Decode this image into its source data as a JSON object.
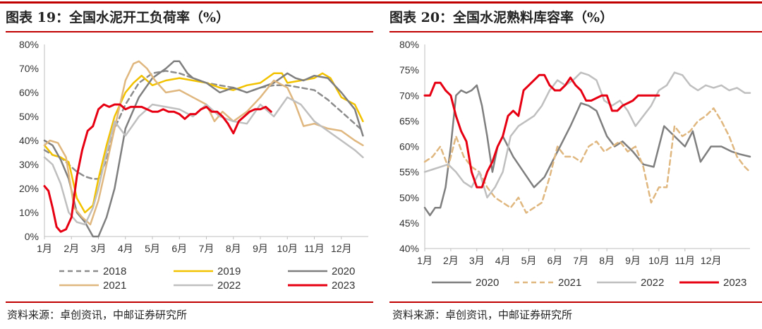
{
  "left": {
    "title": "图表 19：全国水泥开工负荷率（%）",
    "source": "资料来源：卓创资讯，中邮证券研究所"
  },
  "right": {
    "title": "图表 20：全国水泥熟料库容率（%）",
    "source": "资料来源：卓创资讯，中邮证券研究所"
  },
  "colors": {
    "accent": "#c00000",
    "s2018": "#8c8c8c",
    "s2019": "#f2c200",
    "s2020": "#7f7f7f",
    "s2021": "#dfb77f",
    "s2022": "#bfbfbf",
    "s2023": "#e60012"
  },
  "chart_data": [
    {
      "type": "line",
      "x_ticks": [
        "1月",
        "2月",
        "3月",
        "4月",
        "5月",
        "6月",
        "7月",
        "8月",
        "9月",
        "10月",
        "11月",
        "12月"
      ],
      "y_ticks": [
        "0%",
        "10%",
        "20%",
        "30%",
        "40%",
        "50%",
        "60%",
        "70%",
        "80%"
      ],
      "ylim": [
        0,
        80
      ],
      "xlim": [
        1,
        13
      ],
      "legend": [
        "2018",
        "2019",
        "2020",
        "2021",
        "2022",
        "2023"
      ],
      "series": [
        {
          "name": "2018",
          "style": "dashed",
          "color": "#8c8c8c",
          "x": [
            1,
            1.3,
            1.6,
            1.9,
            2.2,
            2.5,
            2.8,
            3,
            3.3,
            3.6,
            4,
            4.5,
            5,
            5.5,
            6,
            6.5,
            7,
            7.5,
            8,
            8.5,
            9,
            9.5,
            10,
            10.5,
            11,
            11.5,
            12,
            12.5,
            12.8
          ],
          "y": [
            36,
            34,
            33,
            30,
            27,
            25,
            24,
            24,
            32,
            45,
            55,
            64,
            68,
            69,
            68,
            66,
            64,
            63,
            62,
            60,
            62,
            63,
            63,
            62,
            61,
            57,
            52,
            47,
            44
          ]
        },
        {
          "name": "2019",
          "style": "solid",
          "color": "#f2c200",
          "x": [
            1,
            1.3,
            1.6,
            1.9,
            2.2,
            2.5,
            2.8,
            3,
            3.3,
            3.6,
            4,
            4.3,
            4.6,
            5,
            5.5,
            6,
            6.5,
            7,
            7.5,
            8,
            8.5,
            9,
            9.5,
            9.8,
            10,
            10.5,
            11,
            11.3,
            11.6,
            12,
            12.5,
            12.8
          ],
          "y": [
            38,
            34,
            33,
            31,
            16,
            10,
            13,
            24,
            38,
            50,
            60,
            64,
            67,
            63,
            65,
            66,
            65,
            64,
            62,
            61,
            63,
            64,
            68,
            68,
            64,
            65,
            66,
            68,
            66,
            58,
            55,
            48
          ]
        },
        {
          "name": "2020",
          "style": "solid",
          "color": "#7f7f7f",
          "x": [
            1,
            1.3,
            1.6,
            1.9,
            2.2,
            2.5,
            2.8,
            3,
            3.3,
            3.6,
            4,
            4.5,
            5,
            5.5,
            5.8,
            6,
            6.3,
            6.5,
            7,
            7.5,
            8,
            8.5,
            9,
            9.5,
            10,
            10.3,
            10.6,
            11,
            11.5,
            12,
            12.5,
            12.8
          ],
          "y": [
            40,
            38,
            32,
            24,
            10,
            6,
            0,
            0,
            8,
            20,
            45,
            58,
            66,
            70,
            73,
            73,
            68,
            66,
            64,
            60,
            62,
            60,
            62,
            64,
            68,
            66,
            65,
            67,
            66,
            60,
            53,
            42
          ]
        },
        {
          "name": "2021",
          "style": "solid",
          "color": "#dfb77f",
          "x": [
            1,
            1.2,
            1.5,
            1.8,
            2.1,
            2.4,
            2.7,
            3,
            3.3,
            3.6,
            4,
            4.3,
            4.5,
            4.8,
            5.1,
            5.5,
            6,
            6.5,
            7,
            7.3,
            7.6,
            8,
            8.5,
            9,
            9.5,
            10,
            10.3,
            10.6,
            11,
            11.5,
            12,
            12.5,
            12.8
          ],
          "y": [
            38,
            40,
            39,
            33,
            12,
            8,
            5,
            15,
            30,
            45,
            65,
            72,
            73,
            70,
            65,
            60,
            61,
            58,
            55,
            48,
            52,
            48,
            52,
            58,
            65,
            62,
            55,
            46,
            47,
            45,
            44,
            40,
            38
          ]
        },
        {
          "name": "2022",
          "style": "solid",
          "color": "#bfbfbf",
          "x": [
            1,
            1.3,
            1.6,
            1.9,
            2.2,
            2.5,
            2.8,
            3,
            3.3,
            3.6,
            4,
            4.5,
            5,
            5.5,
            6,
            6.5,
            7,
            7.5,
            8,
            8.5,
            9,
            9.5,
            10,
            10.5,
            11,
            11.5,
            12,
            12.5,
            12.8
          ],
          "y": [
            33,
            30,
            22,
            10,
            6,
            5,
            12,
            20,
            35,
            48,
            42,
            50,
            55,
            54,
            53,
            50,
            55,
            50,
            48,
            47,
            55,
            50,
            58,
            55,
            48,
            44,
            40,
            36,
            33
          ]
        },
        {
          "name": "2023",
          "style": "solid",
          "color": "#e60012",
          "x": [
            1,
            1.15,
            1.3,
            1.45,
            1.6,
            1.8,
            2,
            2.2,
            2.4,
            2.6,
            2.8,
            3,
            3.2,
            3.4,
            3.6,
            3.8,
            4,
            4.2,
            4.4,
            4.6,
            4.8,
            5,
            5.2,
            5.4,
            5.6,
            5.8,
            6,
            6.2,
            6.4,
            6.6,
            6.8,
            7,
            7.2,
            7.4,
            7.6,
            7.8,
            8,
            8.2,
            8.4,
            8.6,
            8.8,
            9,
            9.2,
            9.4
          ],
          "y": [
            21,
            19,
            12,
            4,
            2,
            3,
            8,
            25,
            36,
            44,
            46,
            53,
            55,
            54,
            55,
            55,
            53,
            54,
            54,
            54,
            53,
            52,
            52,
            53,
            52,
            52,
            51,
            49,
            51,
            51,
            53,
            54,
            52,
            52,
            50,
            47,
            43,
            48,
            50,
            52,
            53,
            53,
            54,
            52
          ]
        }
      ]
    },
    {
      "type": "line",
      "x_ticks": [
        "1月",
        "2月",
        "3月",
        "4月",
        "5月",
        "6月",
        "7月",
        "8月",
        "9月",
        "10月",
        "11月",
        "12月"
      ],
      "y_ticks": [
        "40%",
        "45%",
        "50%",
        "55%",
        "60%",
        "65%",
        "70%",
        "75%",
        "80%"
      ],
      "ylim": [
        40,
        80
      ],
      "xlim": [
        1,
        13.5
      ],
      "legend": [
        "2020",
        "2021",
        "2022",
        "2023"
      ],
      "series": [
        {
          "name": "2020",
          "style": "solid",
          "color": "#7f7f7f",
          "x": [
            1,
            1.2,
            1.4,
            1.6,
            1.8,
            2,
            2.2,
            2.4,
            2.6,
            2.8,
            3,
            3.2,
            3.4,
            3.6,
            3.8,
            4,
            4.4,
            4.8,
            5.2,
            5.6,
            5.9,
            6.2,
            6.6,
            7,
            7.3,
            7.6,
            8,
            8.3,
            8.6,
            9,
            9.4,
            9.8,
            10.2,
            10.6,
            11,
            11.3,
            11.6,
            12,
            12.4,
            12.8,
            13.1,
            13.5
          ],
          "y": [
            48,
            46.5,
            48,
            48,
            52,
            60,
            70,
            71,
            70.5,
            71,
            72,
            68,
            62,
            55,
            60,
            62,
            58,
            55,
            52,
            54,
            57,
            60,
            64,
            68.5,
            68,
            67,
            62,
            60,
            61,
            59,
            56.5,
            56,
            64,
            62,
            60,
            63,
            57,
            60,
            60,
            59,
            58.5,
            58
          ]
        },
        {
          "name": "2021",
          "style": "dashed",
          "color": "#dfb77f",
          "x": [
            1,
            1.3,
            1.6,
            1.9,
            2.2,
            2.5,
            2.8,
            3.1,
            3.4,
            3.7,
            4,
            4.3,
            4.6,
            4.9,
            5.2,
            5.5,
            5.8,
            6.1,
            6.4,
            6.7,
            7,
            7.3,
            7.6,
            7.9,
            8.2,
            8.5,
            8.8,
            9.1,
            9.4,
            9.7,
            10,
            10.3,
            10.6,
            10.9,
            11.2,
            11.5,
            11.8,
            12.1,
            12.4,
            12.7,
            13,
            13.3,
            13.5
          ],
          "y": [
            57,
            58,
            60,
            56,
            62,
            58,
            56,
            55,
            52,
            50,
            49,
            48,
            50,
            47,
            48,
            49,
            54,
            60,
            58,
            58,
            57,
            60,
            61,
            59,
            60,
            61,
            59,
            60,
            56,
            49,
            52,
            52,
            64,
            62,
            63,
            65,
            66,
            67.5,
            65,
            62,
            58,
            56,
            55
          ]
        },
        {
          "name": "2022",
          "style": "solid",
          "color": "#bfbfbf",
          "x": [
            1,
            1.3,
            1.6,
            1.9,
            2.2,
            2.5,
            2.8,
            3.1,
            3.4,
            3.7,
            4,
            4.3,
            4.6,
            4.9,
            5.2,
            5.5,
            5.8,
            6.1,
            6.4,
            6.7,
            7,
            7.3,
            7.6,
            7.9,
            8.2,
            8.5,
            8.8,
            9.1,
            9.4,
            9.7,
            10,
            10.3,
            10.6,
            10.9,
            11.2,
            11.5,
            11.8,
            12.1,
            12.4,
            12.7,
            13,
            13.3,
            13.5
          ],
          "y": [
            55,
            55.5,
            56,
            56.5,
            55,
            53,
            52,
            55,
            50,
            52,
            55,
            62,
            64,
            65,
            66,
            68,
            71,
            73,
            72,
            73,
            74.5,
            74,
            73,
            69,
            68,
            69,
            67,
            64,
            66,
            68,
            71,
            72,
            74.5,
            74,
            72,
            71,
            72,
            71.5,
            72,
            71,
            71.5,
            70.5,
            70.5
          ]
        },
        {
          "name": "2023",
          "style": "solid",
          "color": "#e60012",
          "x": [
            1,
            1.2,
            1.4,
            1.6,
            1.8,
            2,
            2.2,
            2.4,
            2.6,
            2.8,
            3,
            3.2,
            3.4,
            3.6,
            3.8,
            4,
            4.2,
            4.4,
            4.6,
            4.8,
            5,
            5.2,
            5.4,
            5.6,
            5.8,
            6,
            6.2,
            6.4,
            6.6,
            6.8,
            7,
            7.2,
            7.4,
            7.6,
            7.8,
            8,
            8.2,
            8.4,
            8.6,
            8.8,
            9,
            9.2,
            9.4,
            9.6,
            9.8,
            10
          ],
          "y": [
            70,
            70,
            72.5,
            72.5,
            71,
            70,
            66,
            63,
            61,
            55,
            52,
            52,
            55,
            57,
            60,
            62,
            66,
            67,
            66,
            71,
            72,
            73,
            74,
            74,
            72,
            71,
            71,
            72,
            73.5,
            72,
            71,
            69,
            69,
            69.5,
            70,
            70,
            67,
            67,
            68,
            68.5,
            69,
            70,
            70,
            70,
            70,
            70
          ]
        }
      ]
    }
  ]
}
